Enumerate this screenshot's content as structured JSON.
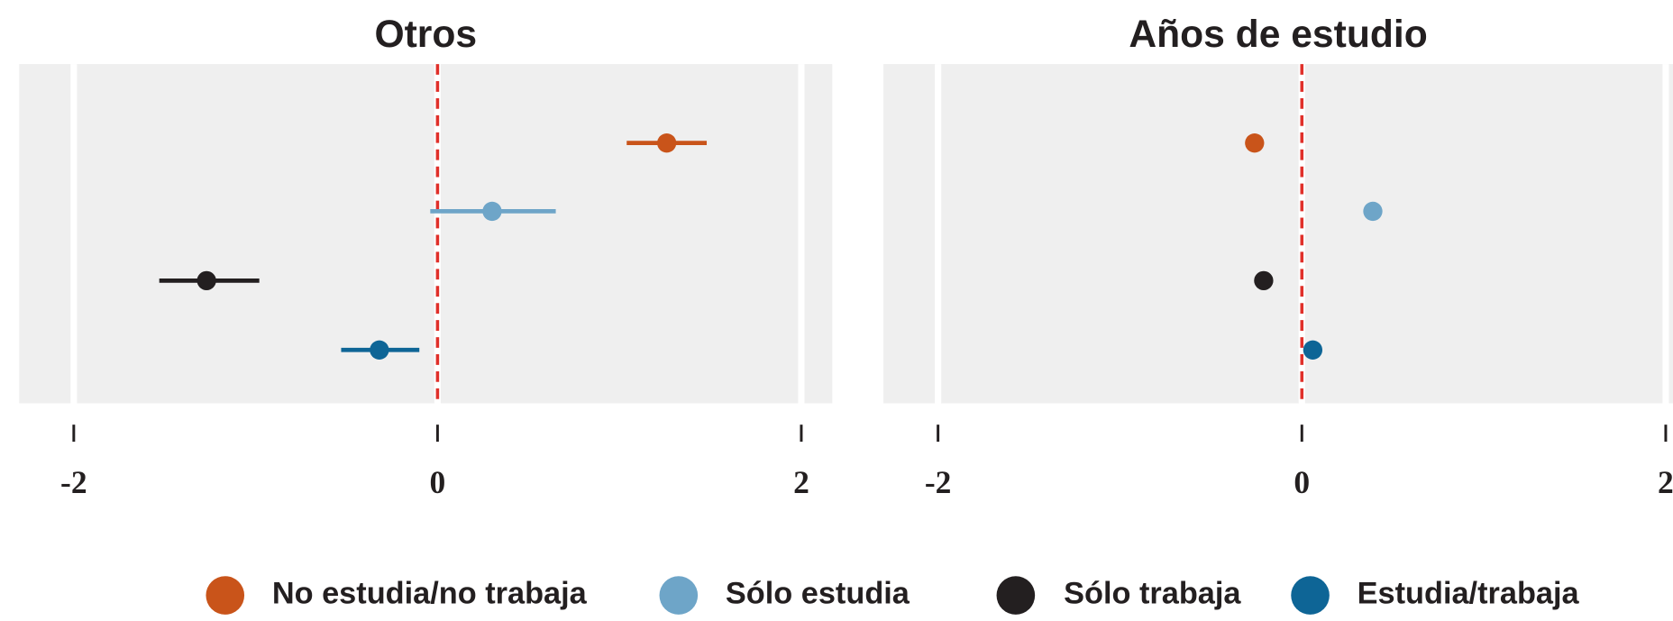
{
  "chart_data": {
    "type": "errorbar",
    "grid": true,
    "reference_line": 0,
    "series": [
      {
        "name": "No estudia/no trabaja",
        "color": "#c9541a"
      },
      {
        "name": "Sólo estudia",
        "color": "#6ea5c8"
      },
      {
        "name": "Sólo trabaja",
        "color": "#231f20"
      },
      {
        "name": "Estudia/trabaja",
        "color": "#0e6596"
      }
    ],
    "facets": [
      {
        "title": "Otros",
        "xlim": [
          -2.3,
          2.17
        ],
        "xticks": [
          -2,
          0,
          2
        ],
        "values": [
          1.26,
          0.3,
          -1.27,
          -0.32
        ],
        "low": [
          1.04,
          -0.04,
          -1.53,
          -0.53
        ],
        "high": [
          1.48,
          0.65,
          -0.98,
          -0.1
        ]
      },
      {
        "title": "Años de estudio",
        "xlim": [
          -2.3,
          2.04
        ],
        "xticks": [
          -2,
          0,
          2
        ],
        "values": [
          -0.26,
          0.39,
          -0.21,
          0.06
        ],
        "low": [
          -0.27,
          0.38,
          -0.22,
          0.05
        ],
        "high": [
          -0.25,
          0.4,
          -0.2,
          0.07
        ]
      }
    ]
  }
}
